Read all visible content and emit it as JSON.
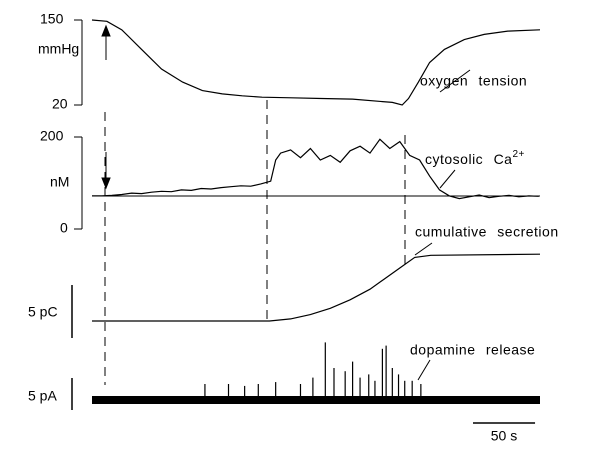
{
  "chart_data": [
    {
      "type": "line",
      "name": "oxygen tension",
      "ylabel": "mmHg",
      "color": "#000000",
      "xlim": [
        0,
        361
      ],
      "ylim": [
        20,
        150
      ],
      "yticks": [
        20,
        150
      ],
      "x": [
        0,
        12,
        24,
        40,
        56,
        73,
        89,
        105,
        121,
        137,
        161,
        185,
        210,
        242,
        250,
        255,
        263,
        272,
        284,
        300,
        316,
        335,
        361
      ],
      "values": [
        150,
        148,
        135,
        105,
        75,
        55,
        42,
        37,
        34,
        32,
        31,
        30,
        29,
        24,
        20,
        30,
        55,
        85,
        105,
        120,
        128,
        133,
        135
      ]
    },
    {
      "type": "line",
      "name": "cytosolic Ca",
      "name_sup": "2+",
      "ylabel": "nM",
      "color": "#000000",
      "xlim": [
        0,
        361
      ],
      "ylim": [
        0,
        200
      ],
      "yticks": [
        0,
        200
      ],
      "x": [
        0,
        8,
        16,
        24,
        32,
        40,
        48,
        56,
        64,
        72,
        80,
        88,
        96,
        104,
        112,
        120,
        128,
        136,
        144,
        148,
        152,
        160,
        168,
        176,
        184,
        192,
        200,
        208,
        216,
        224,
        232,
        240,
        248,
        256,
        264,
        272,
        280,
        288,
        296,
        304,
        312,
        320,
        328,
        336,
        344,
        352,
        360
      ],
      "values": [
        72,
        72,
        73,
        75,
        78,
        77,
        80,
        82,
        81,
        85,
        84,
        88,
        87,
        90,
        92,
        94,
        93,
        98,
        104,
        150,
        165,
        172,
        155,
        175,
        150,
        160,
        145,
        170,
        180,
        165,
        195,
        175,
        190,
        160,
        150,
        115,
        85,
        72,
        66,
        70,
        74,
        68,
        71,
        73,
        70,
        72,
        71
      ]
    },
    {
      "type": "line",
      "name": "cumulative secretion",
      "color": "#000000",
      "xlim": [
        0,
        361
      ],
      "scale_bar": {
        "value": 5,
        "label": "5 pC"
      },
      "x": [
        0,
        143,
        160,
        176,
        192,
        208,
        224,
        236,
        248,
        260,
        273,
        361
      ],
      "values": [
        0,
        0,
        0.2,
        0.6,
        1.2,
        2,
        3,
        4,
        5,
        6,
        6.2,
        6.3
      ]
    },
    {
      "type": "spikes",
      "name": "dopamine release",
      "color": "#000000",
      "xlim": [
        0,
        361
      ],
      "scale_bar": {
        "value": 5,
        "label": "5 pA"
      },
      "x_scale_bar": {
        "value": 50,
        "label": "50 s"
      },
      "x": [
        91,
        110,
        123,
        134,
        148,
        168,
        178,
        188,
        195,
        204,
        210,
        216,
        223,
        228,
        234,
        237,
        242,
        247,
        252,
        258,
        265
      ],
      "values": [
        2.5,
        2.5,
        2.2,
        2.5,
        2.8,
        2.5,
        3.5,
        9,
        5,
        4.5,
        6,
        3.5,
        4,
        3,
        8,
        8.5,
        5,
        4,
        3,
        3,
        2.5
      ]
    }
  ]
}
